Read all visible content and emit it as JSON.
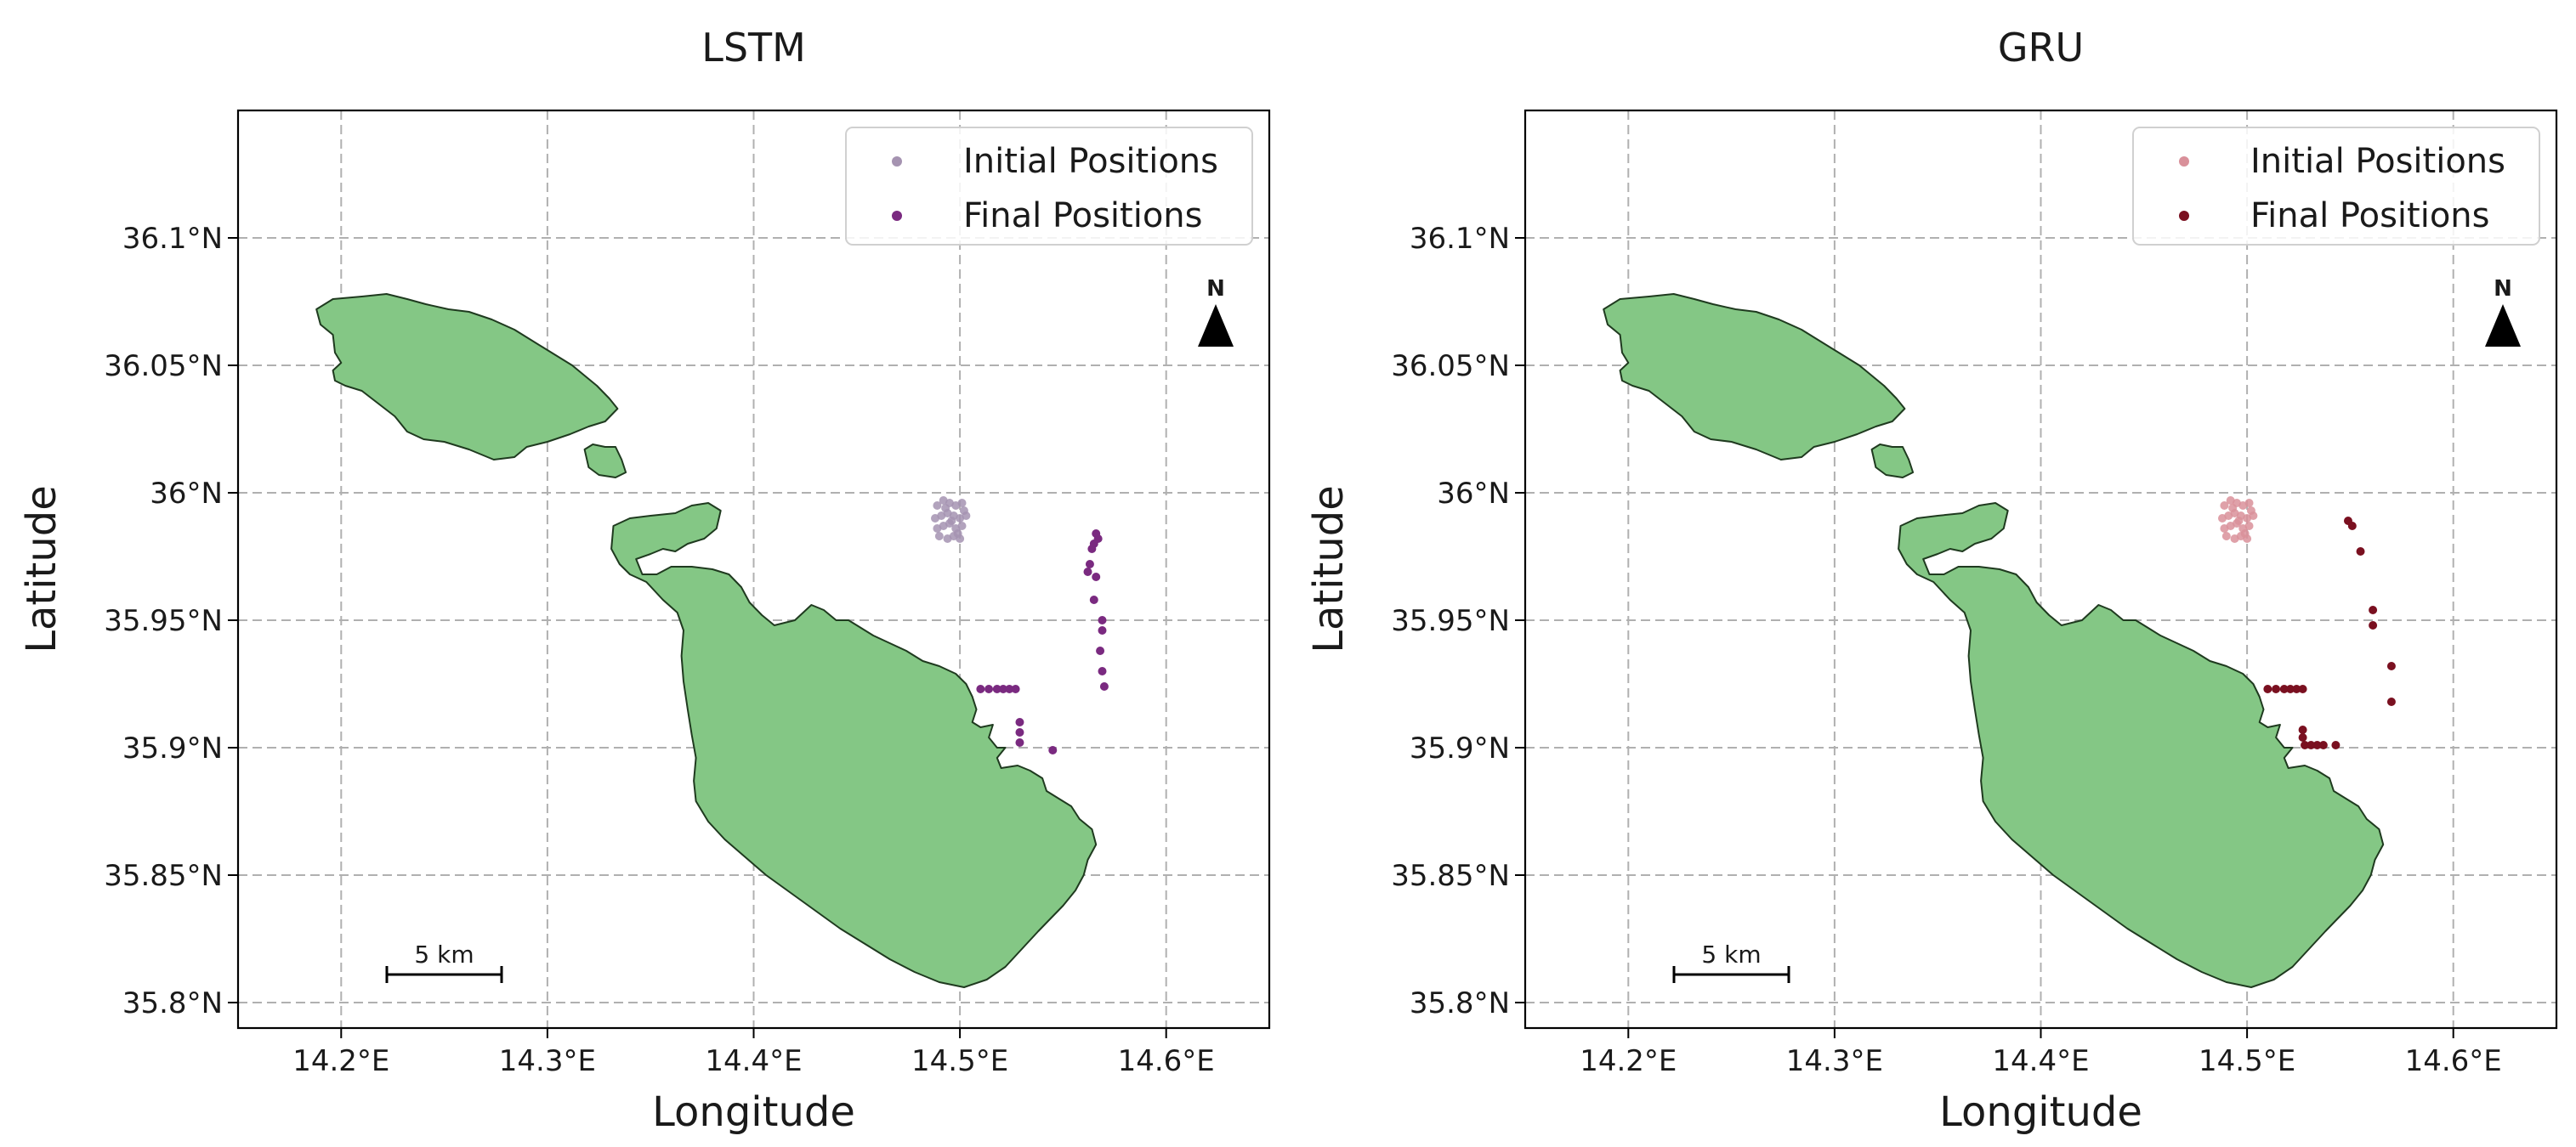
{
  "chart_data": [
    {
      "type": "scatter",
      "title": "LSTM",
      "xlabel": "Longitude",
      "ylabel": "Latitude",
      "xlim": [
        14.15,
        14.65
      ],
      "ylim": [
        35.79,
        36.15
      ],
      "xticks": [
        14.2,
        14.3,
        14.4,
        14.5,
        14.6
      ],
      "xtick_labels": [
        "14.2°E",
        "14.3°E",
        "14.4°E",
        "14.5°E",
        "14.6°E"
      ],
      "yticks": [
        35.8,
        35.85,
        35.9,
        35.95,
        36.0,
        36.05,
        36.1
      ],
      "ytick_labels": [
        "35.8°N",
        "35.85°N",
        "35.9°N",
        "35.95°N",
        "36°N",
        "36.05°N",
        "36.1°N"
      ],
      "grid": true,
      "legend_position": "top-right",
      "north_arrow_label": "N",
      "scale_bar_label": "5 km",
      "series": [
        {
          "name": "Initial Positions",
          "color": "#a593b1",
          "points": [
            [
              14.489,
              35.995
            ],
            [
              14.492,
              35.997
            ],
            [
              14.495,
              35.996
            ],
            [
              14.498,
              35.995
            ],
            [
              14.501,
              35.996
            ],
            [
              14.488,
              35.99
            ],
            [
              14.491,
              35.991
            ],
            [
              14.494,
              35.992
            ],
            [
              14.497,
              35.991
            ],
            [
              14.5,
              35.99
            ],
            [
              14.503,
              35.991
            ],
            [
              14.489,
              35.986
            ],
            [
              14.492,
              35.987
            ],
            [
              14.495,
              35.988
            ],
            [
              14.498,
              35.986
            ],
            [
              14.501,
              35.987
            ],
            [
              14.49,
              35.983
            ],
            [
              14.494,
              35.982
            ],
            [
              14.497,
              35.983
            ],
            [
              14.5,
              35.982
            ],
            [
              14.493,
              35.994
            ],
            [
              14.496,
              35.989
            ],
            [
              14.499,
              35.984
            ],
            [
              14.502,
              35.993
            ]
          ]
        },
        {
          "name": "Final Positions",
          "color": "#7a2a80",
          "points": [
            [
              14.566,
              35.984
            ],
            [
              14.567,
              35.982
            ],
            [
              14.565,
              35.98
            ],
            [
              14.564,
              35.978
            ],
            [
              14.563,
              35.972
            ],
            [
              14.562,
              35.969
            ],
            [
              14.566,
              35.967
            ],
            [
              14.565,
              35.958
            ],
            [
              14.569,
              35.95
            ],
            [
              14.569,
              35.946
            ],
            [
              14.568,
              35.938
            ],
            [
              14.569,
              35.93
            ],
            [
              14.57,
              35.924
            ],
            [
              14.51,
              35.923
            ],
            [
              14.514,
              35.923
            ],
            [
              14.518,
              35.923
            ],
            [
              14.521,
              35.923
            ],
            [
              14.524,
              35.923
            ],
            [
              14.527,
              35.923
            ],
            [
              14.529,
              35.91
            ],
            [
              14.529,
              35.906
            ],
            [
              14.529,
              35.902
            ],
            [
              14.545,
              35.899
            ]
          ]
        }
      ]
    },
    {
      "type": "scatter",
      "title": "GRU",
      "xlabel": "Longitude",
      "ylabel": "Latitude",
      "xlim": [
        14.15,
        14.65
      ],
      "ylim": [
        35.79,
        36.15
      ],
      "xticks": [
        14.2,
        14.3,
        14.4,
        14.5,
        14.6
      ],
      "xtick_labels": [
        "14.2°E",
        "14.3°E",
        "14.4°E",
        "14.5°E",
        "14.6°E"
      ],
      "yticks": [
        35.8,
        35.85,
        35.9,
        35.95,
        36.0,
        36.05,
        36.1
      ],
      "ytick_labels": [
        "35.8°N",
        "35.85°N",
        "35.9°N",
        "35.95°N",
        "36°N",
        "36.05°N",
        "36.1°N"
      ],
      "grid": true,
      "legend_position": "top-right",
      "north_arrow_label": "N",
      "scale_bar_label": "5 km",
      "series": [
        {
          "name": "Initial Positions",
          "color": "#d9909a",
          "points": [
            [
              14.489,
              35.995
            ],
            [
              14.492,
              35.997
            ],
            [
              14.495,
              35.996
            ],
            [
              14.498,
              35.995
            ],
            [
              14.501,
              35.996
            ],
            [
              14.488,
              35.99
            ],
            [
              14.491,
              35.991
            ],
            [
              14.494,
              35.992
            ],
            [
              14.497,
              35.991
            ],
            [
              14.5,
              35.99
            ],
            [
              14.503,
              35.991
            ],
            [
              14.489,
              35.986
            ],
            [
              14.492,
              35.987
            ],
            [
              14.495,
              35.988
            ],
            [
              14.498,
              35.986
            ],
            [
              14.501,
              35.987
            ],
            [
              14.49,
              35.983
            ],
            [
              14.494,
              35.982
            ],
            [
              14.497,
              35.983
            ],
            [
              14.5,
              35.982
            ],
            [
              14.493,
              35.994
            ],
            [
              14.496,
              35.989
            ],
            [
              14.499,
              35.984
            ],
            [
              14.502,
              35.993
            ]
          ]
        },
        {
          "name": "Final Positions",
          "color": "#7a1020",
          "points": [
            [
              14.549,
              35.989
            ],
            [
              14.551,
              35.987
            ],
            [
              14.555,
              35.977
            ],
            [
              14.561,
              35.954
            ],
            [
              14.561,
              35.948
            ],
            [
              14.57,
              35.932
            ],
            [
              14.57,
              35.918
            ],
            [
              14.51,
              35.923
            ],
            [
              14.514,
              35.923
            ],
            [
              14.518,
              35.923
            ],
            [
              14.521,
              35.923
            ],
            [
              14.524,
              35.923
            ],
            [
              14.527,
              35.923
            ],
            [
              14.527,
              35.907
            ],
            [
              14.527,
              35.904
            ],
            [
              14.528,
              35.901
            ],
            [
              14.531,
              35.901
            ],
            [
              14.534,
              35.901
            ],
            [
              14.537,
              35.901
            ],
            [
              14.543,
              35.901
            ]
          ]
        }
      ]
    }
  ]
}
